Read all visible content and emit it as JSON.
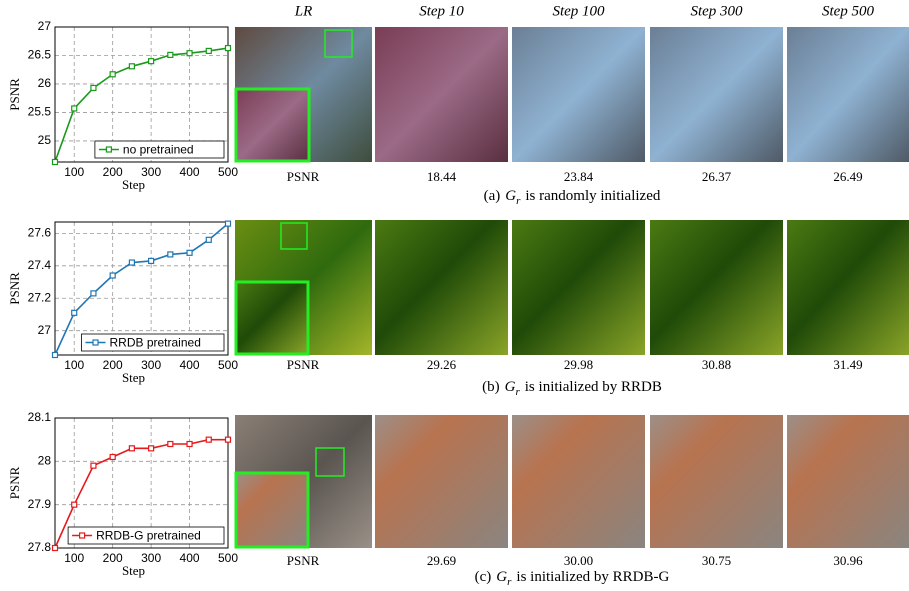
{
  "chart_data": [
    {
      "type": "line",
      "xlabel": "Step",
      "ylabel": "PSNR",
      "x": [
        50,
        100,
        150,
        200,
        250,
        300,
        350,
        400,
        450,
        500
      ],
      "series": [
        {
          "name": "no pretrained",
          "color": "#1a9a1a",
          "values": [
            24.63,
            25.57,
            25.93,
            26.17,
            26.31,
            26.4,
            26.51,
            26.54,
            26.58,
            26.63
          ]
        }
      ],
      "xlim": [
        50,
        500
      ],
      "xticks": [
        100,
        200,
        300,
        400,
        500
      ],
      "ylim": [
        24.63,
        27
      ],
      "yticks": [
        25,
        25.5,
        26,
        26.5,
        27
      ],
      "grid": true,
      "legend": "lower right"
    },
    {
      "type": "line",
      "xlabel": "Step",
      "ylabel": "PSNR",
      "x": [
        50,
        100,
        150,
        200,
        250,
        300,
        350,
        400,
        450,
        500
      ],
      "series": [
        {
          "name": "RRDB pretrained",
          "color": "#1f77b4",
          "values": [
            26.85,
            27.11,
            27.23,
            27.34,
            27.42,
            27.43,
            27.47,
            27.48,
            27.56,
            27.66
          ]
        }
      ],
      "xlim": [
        50,
        500
      ],
      "xticks": [
        100,
        200,
        300,
        400,
        500
      ],
      "ylim": [
        26.85,
        27.67
      ],
      "yticks": [
        27,
        27.2,
        27.4,
        27.6
      ],
      "grid": true,
      "legend": "lower right"
    },
    {
      "type": "line",
      "xlabel": "Step",
      "ylabel": "PSNR",
      "x": [
        50,
        100,
        150,
        200,
        250,
        300,
        350,
        400,
        450,
        500
      ],
      "series": [
        {
          "name": "RRDB-G pretrained",
          "color": "#e41a1c",
          "values": [
            27.8,
            27.9,
            27.99,
            28.01,
            28.03,
            28.03,
            28.04,
            28.04,
            28.05,
            28.05
          ]
        }
      ],
      "xlim": [
        50,
        500
      ],
      "xticks": [
        100,
        200,
        300,
        400,
        500
      ],
      "ylim": [
        27.8,
        28.1
      ],
      "yticks": [
        27.8,
        27.9,
        28,
        28.1
      ],
      "grid": true,
      "legend": "lower right"
    }
  ],
  "columns": [
    "LR",
    "Step 10",
    "Step 100",
    "Step 300",
    "Step 500"
  ],
  "rows": [
    {
      "psnr_label": "PSNR",
      "psnr": [
        "18.44",
        "23.84",
        "26.37",
        "26.49"
      ],
      "caption": {
        "label": "(a)",
        "symbol": "G",
        "subscript": "r",
        "text": "is randomly initialized"
      }
    },
    {
      "psnr_label": "PSNR",
      "psnr": [
        "29.26",
        "29.98",
        "30.88",
        "31.49"
      ],
      "caption": {
        "label": "(b)",
        "symbol": "G",
        "subscript": "r",
        "text": "is initialized by RRDB"
      }
    },
    {
      "psnr_label": "PSNR",
      "psnr": [
        "29.69",
        "30.00",
        "30.75",
        "30.96"
      ],
      "caption": {
        "label": "(c)",
        "symbol": "G",
        "subscript": "r",
        "text": "is initialized by RRDB-G"
      }
    }
  ]
}
